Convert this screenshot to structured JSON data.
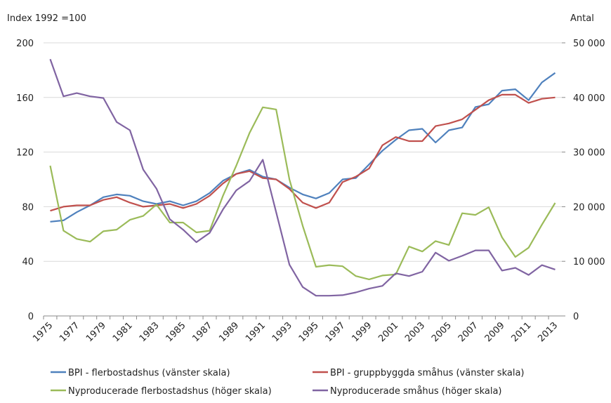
{
  "chart_data": {
    "type": "line",
    "y_label": "Index 1992 =100",
    "y2_label": "Antal",
    "categories": [
      "1975",
      null,
      "1977",
      null,
      "1979",
      null,
      "1981",
      null,
      "1983",
      null,
      "1985",
      null,
      "1987",
      null,
      "1989",
      null,
      "1991",
      null,
      "1993",
      null,
      "1995",
      null,
      "1997",
      null,
      "1999",
      null,
      "2001",
      null,
      "2003",
      null,
      "2005",
      null,
      "2007",
      null,
      "2009",
      null,
      "2011",
      null,
      "2013"
    ],
    "ylim": [
      0,
      200
    ],
    "yticks": [
      0,
      40,
      80,
      120,
      160,
      200
    ],
    "y2lim": [
      0,
      50000
    ],
    "y2ticks": [
      {
        "value": 0,
        "label": "0"
      },
      {
        "value": 10000,
        "label": "10 000"
      },
      {
        "value": 20000,
        "label": "20 000"
      },
      {
        "value": 30000,
        "label": "30 000"
      },
      {
        "value": 40000,
        "label": "40 000"
      },
      {
        "value": 50000,
        "label": "50 000"
      }
    ],
    "grid": true,
    "legend": "bottom",
    "series": [
      {
        "name": "BPI - flerbostadshus (vänster skala)",
        "color": "#4f81bd",
        "values": [
          69,
          70,
          76,
          81,
          87,
          89,
          88,
          84,
          82,
          84,
          81,
          84,
          90,
          99,
          104,
          107,
          102,
          100,
          94,
          89,
          86,
          90,
          100,
          101,
          111,
          121,
          129,
          136,
          137,
          127,
          136,
          138,
          153,
          155,
          165,
          166,
          158,
          171,
          178
        ]
      },
      {
        "name": "BPI - gruppbyggda småhus (vänster skala)",
        "color": "#c0504d",
        "values": [
          77,
          80,
          81,
          81,
          85,
          87,
          83,
          80,
          81,
          82,
          79,
          82,
          88,
          97,
          104,
          106,
          101,
          100,
          93,
          83,
          79,
          83,
          98,
          102,
          108,
          125,
          131,
          128,
          128,
          139,
          141,
          144,
          151,
          158,
          162,
          162,
          156,
          159,
          160
        ]
      },
      {
        "name": "Nyproducerade flerbostadshus (höger skala)",
        "color": "#9bbb59",
        "axis": "y2",
        "values": [
          27500,
          15600,
          14100,
          13600,
          15500,
          15800,
          17600,
          18300,
          20400,
          17100,
          17100,
          15300,
          15600,
          22000,
          27500,
          33500,
          38200,
          37800,
          25000,
          16500,
          9000,
          9300,
          9100,
          7300,
          6700,
          7400,
          7600,
          12700,
          11800,
          13700,
          13000,
          18800,
          18500,
          19900,
          14400,
          10800,
          12500,
          16700,
          20700
        ]
      },
      {
        "name": "Nyproducerade småhus (höger skala)",
        "color": "#8064a2",
        "axis": "y2",
        "values": [
          47000,
          40200,
          40800,
          40200,
          39900,
          35500,
          34000,
          26800,
          23300,
          17700,
          15800,
          13500,
          15200,
          19500,
          23000,
          24700,
          28600,
          19000,
          9400,
          5300,
          3700,
          3700,
          3800,
          4300,
          5000,
          5500,
          7800,
          7300,
          8100,
          11600,
          10100,
          11000,
          12000,
          12000,
          8300,
          8800,
          7500,
          9300,
          8500
        ]
      }
    ]
  }
}
